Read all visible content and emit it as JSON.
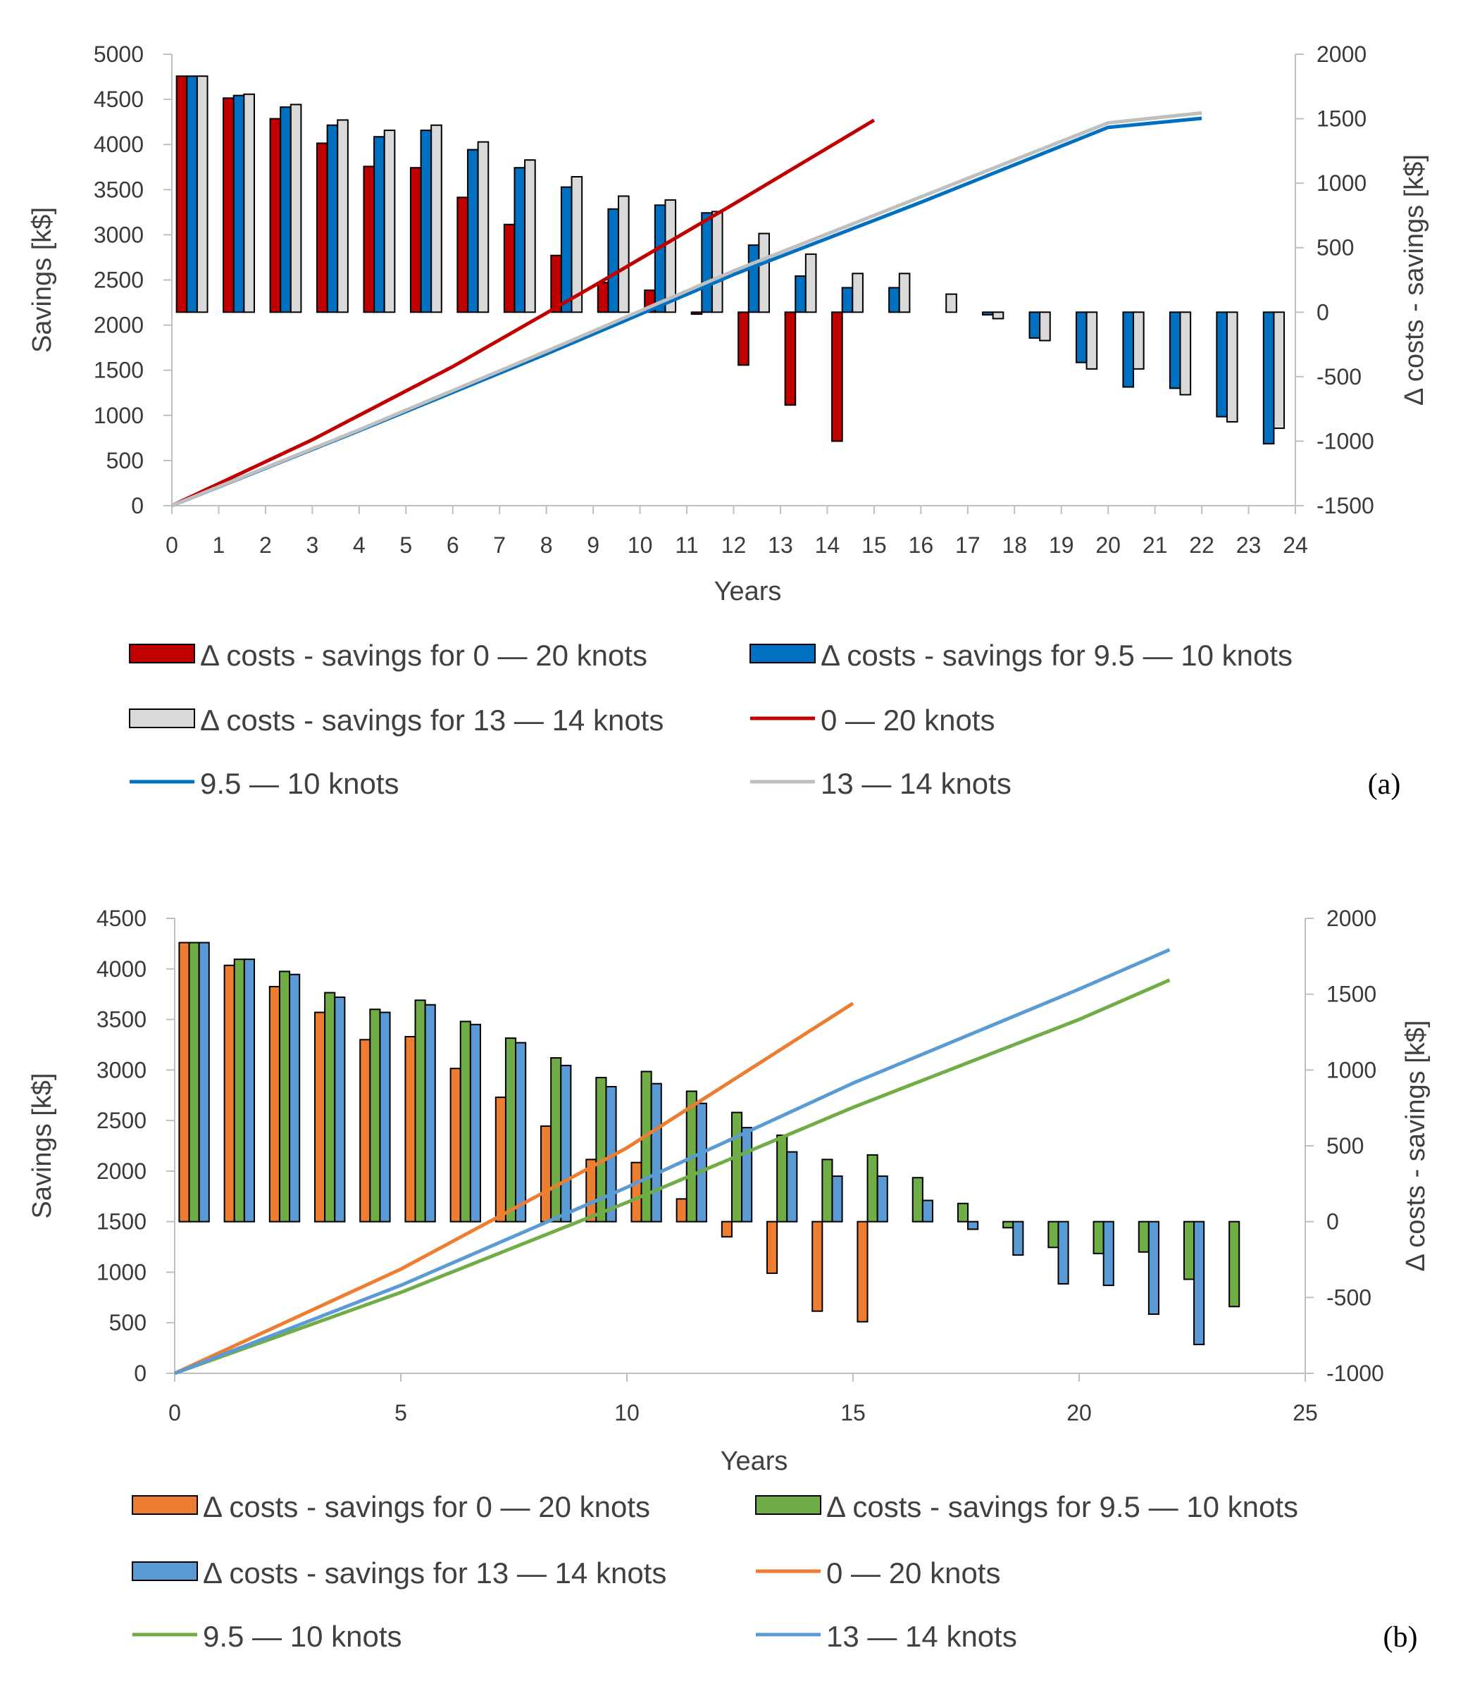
{
  "chart_data": [
    {
      "panel": "(a)",
      "type": "bar+line",
      "xlabel": "Years",
      "ylabel_left": "Savings [k$]",
      "ylabel_right": "Δ costs - savings [k$]",
      "x_ticks": [
        "0",
        "1",
        "2",
        "3",
        "4",
        "5",
        "6",
        "7",
        "8",
        "9",
        "10",
        "11",
        "12",
        "13",
        "14",
        "15",
        "16",
        "17",
        "18",
        "19",
        "20",
        "21",
        "22",
        "23",
        "24"
      ],
      "y_left_ticks": [
        "0",
        "500",
        "1000",
        "1500",
        "2000",
        "2500",
        "3000",
        "3500",
        "4000",
        "4500",
        "5000"
      ],
      "y_right_ticks": [
        "-1500",
        "-1000",
        "-500",
        "0",
        "500",
        "1000",
        "1500",
        "2000"
      ],
      "x_range": [
        0,
        24
      ],
      "y_left_range": [
        0,
        5000
      ],
      "y_right_range": [
        -1500,
        2000
      ],
      "bar_years": [
        0,
        1,
        2,
        3,
        4,
        5,
        6,
        7,
        8,
        9,
        10,
        11,
        12,
        13,
        14,
        15,
        16,
        17,
        18,
        19,
        20,
        21,
        22,
        23
      ],
      "bar_series": [
        {
          "legend": "Δ costs - savings for 0 — 20 knots",
          "color": "#c00000",
          "values": [
            1830,
            1660,
            1500,
            1310,
            1130,
            1120,
            890,
            680,
            440,
            230,
            170,
            -15,
            -410,
            -720,
            -1000,
            null,
            null,
            null,
            null,
            null,
            null,
            null,
            null,
            null
          ]
        },
        {
          "legend": "Δ costs - savings for 9.5 — 10 knots",
          "color": "#0070c0",
          "values": [
            1830,
            1680,
            1590,
            1450,
            1360,
            1410,
            1260,
            1120,
            970,
            800,
            830,
            770,
            520,
            280,
            190,
            190,
            null,
            -20,
            -200,
            -390,
            -580,
            -590,
            -810,
            -1020
          ]
        },
        {
          "legend": "Δ costs - savings for 13 — 14 knots",
          "color": "#d9d9d9",
          "values": [
            1830,
            1690,
            1610,
            1490,
            1410,
            1450,
            1320,
            1180,
            1050,
            900,
            870,
            780,
            610,
            450,
            300,
            300,
            140,
            -50,
            -220,
            -440,
            -440,
            -640,
            -850,
            -900
          ]
        }
      ],
      "line_series": [
        {
          "legend": "0 — 20 knots",
          "color": "#c00000",
          "x": [
            0,
            3,
            6,
            9,
            12,
            15
          ],
          "y": [
            0,
            730,
            1540,
            2430,
            3340,
            4270
          ]
        },
        {
          "legend": "9.5 — 10 knots",
          "color": "#0070c0",
          "x": [
            0,
            4,
            8,
            12,
            16,
            20,
            22
          ],
          "y": [
            0,
            830,
            1680,
            2560,
            3360,
            4190,
            4290
          ]
        },
        {
          "legend": "13 — 14 knots",
          "color": "#bfbfbf",
          "x": [
            0,
            4,
            8,
            12,
            16,
            20,
            22
          ],
          "y": [
            0,
            840,
            1710,
            2600,
            3420,
            4240,
            4350
          ]
        }
      ]
    },
    {
      "panel": "(b)",
      "type": "bar+line",
      "xlabel": "Years",
      "ylabel_left": "Savings [k$]",
      "ylabel_right": "Δ costs - savings [k$]",
      "x_ticks": [
        "0",
        "5",
        "10",
        "15",
        "20",
        "25"
      ],
      "y_left_ticks": [
        "0",
        "500",
        "1000",
        "1500",
        "2000",
        "2500",
        "3000",
        "3500",
        "4000",
        "4500"
      ],
      "y_right_ticks": [
        "-1000",
        "-500",
        "0",
        "500",
        "1000",
        "1500",
        "2000"
      ],
      "x_range": [
        0,
        25
      ],
      "y_left_range": [
        0,
        4500
      ],
      "y_right_range": [
        -1000,
        2000
      ],
      "bar_years": [
        0,
        1,
        2,
        3,
        4,
        5,
        6,
        7,
        8,
        9,
        10,
        11,
        12,
        13,
        14,
        15,
        16,
        17,
        18,
        19,
        20,
        21,
        22,
        23,
        24
      ],
      "bar_series": [
        {
          "legend": "Δ costs - savings for 0 — 20 knots",
          "color": "#ed7d31",
          "values": [
            1840,
            1690,
            1550,
            1380,
            1200,
            1220,
            1010,
            820,
            630,
            410,
            390,
            150,
            -100,
            -340,
            -590,
            -660,
            null,
            null,
            null,
            null,
            null,
            null,
            null,
            null,
            null
          ]
        },
        {
          "legend": "Δ costs - savings for 9.5 — 10 knots",
          "color": "#70ad47",
          "values": [
            1840,
            1730,
            1650,
            1510,
            1400,
            1460,
            1320,
            1210,
            1080,
            950,
            990,
            860,
            720,
            570,
            410,
            440,
            290,
            120,
            -40,
            -170,
            -210,
            -200,
            -380,
            -560,
            null
          ]
        },
        {
          "legend": "Δ costs - savings for 13 — 14 knots",
          "color": "#5b9bd5",
          "values": [
            1840,
            1730,
            1630,
            1480,
            1380,
            1430,
            1300,
            1180,
            1030,
            890,
            910,
            780,
            620,
            460,
            300,
            300,
            140,
            -50,
            -220,
            -410,
            -420,
            -610,
            -810,
            null,
            null
          ]
        }
      ],
      "line_series": [
        {
          "legend": "0 — 20 knots",
          "color": "#ed7d31",
          "x": [
            0,
            5,
            10,
            15
          ],
          "y": [
            0,
            1030,
            2230,
            3660
          ]
        },
        {
          "legend": "9.5 — 10 knots",
          "color": "#70ad47",
          "x": [
            0,
            5,
            10,
            15,
            20,
            22
          ],
          "y": [
            0,
            800,
            1690,
            2630,
            3500,
            3890
          ]
        },
        {
          "legend": "13 — 14 knots",
          "color": "#5b9bd5",
          "x": [
            0,
            5,
            10,
            15,
            20,
            22
          ],
          "y": [
            0,
            870,
            1840,
            2870,
            3800,
            4190
          ]
        }
      ]
    }
  ]
}
